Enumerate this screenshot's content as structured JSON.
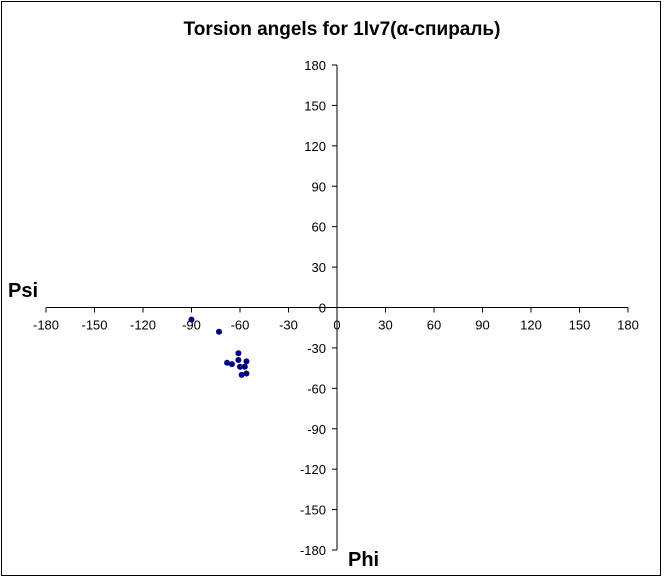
{
  "chart_data": {
    "type": "scatter",
    "title": "Torsion angels for 1lv7(α-спираль)",
    "xlabel": "Phi",
    "ylabel": "Psi",
    "xlim": [
      -180,
      180
    ],
    "ylim": [
      -180,
      180
    ],
    "x_ticks": [
      -180,
      -150,
      -120,
      -90,
      -60,
      -30,
      0,
      30,
      60,
      90,
      120,
      150,
      180
    ],
    "y_ticks": [
      180,
      150,
      120,
      90,
      60,
      30,
      0,
      -30,
      -60,
      -90,
      -120,
      -150,
      -180
    ],
    "grid": false,
    "legend": "none",
    "marker_color": "#000080",
    "series": [
      {
        "points": [
          {
            "x": -90,
            "y": -9
          },
          {
            "x": -73,
            "y": -18
          },
          {
            "x": -68,
            "y": -41
          },
          {
            "x": -65,
            "y": -42
          },
          {
            "x": -61,
            "y": -34
          },
          {
            "x": -61,
            "y": -39
          },
          {
            "x": -60,
            "y": -44
          },
          {
            "x": -57,
            "y": -44
          },
          {
            "x": -56,
            "y": -40
          },
          {
            "x": -59,
            "y": -50
          },
          {
            "x": -56,
            "y": -49
          }
        ]
      }
    ]
  }
}
